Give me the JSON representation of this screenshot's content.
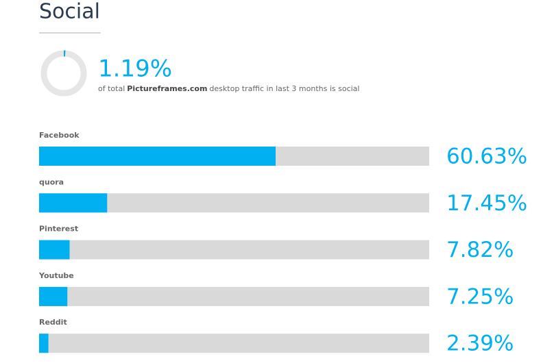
{
  "page": {
    "title": "Social"
  },
  "chart_data": [
    {
      "type": "donut",
      "values": [
        1.19
      ],
      "value_labels": [
        "1.19%"
      ],
      "caption": [
        "of total",
        "Pictureframes.com",
        "desktop traffic in last 3 months is social"
      ],
      "color": "#00aeef",
      "track_color": "#e6e6e6"
    },
    {
      "type": "bar",
      "orientation": "horizontal",
      "categories": [
        "Facebook",
        "quora",
        "Pinterest",
        "Youtube",
        "Reddit"
      ],
      "values": [
        60.63,
        17.45,
        7.82,
        7.25,
        2.39
      ],
      "value_labels": [
        "60.63%",
        "17.45%",
        "7.82%",
        "7.25%",
        "2.39%"
      ],
      "xlim": [
        0,
        100
      ],
      "color": "#00b0f0",
      "track_color": "#d9d9d9"
    }
  ]
}
